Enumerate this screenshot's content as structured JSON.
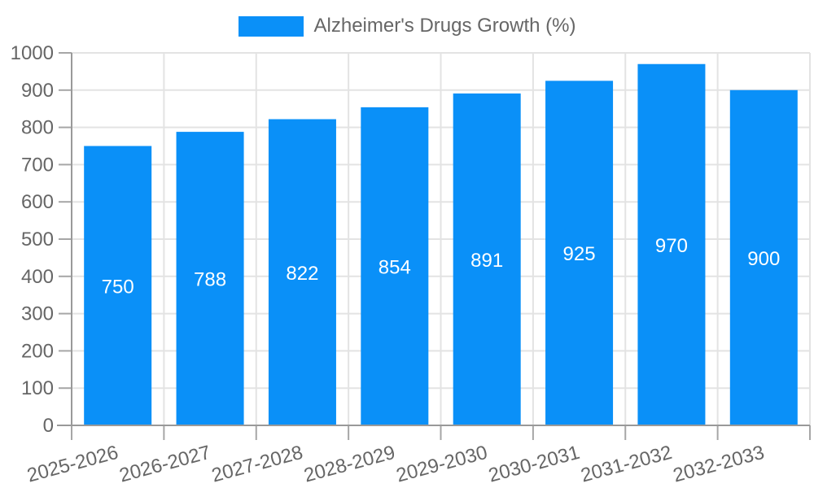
{
  "legend": {
    "label": "Alzheimer's Drugs Growth (%)"
  },
  "chart_data": {
    "type": "bar",
    "title": "",
    "categories": [
      "2025-2026",
      "2026-2027",
      "2027-2028",
      "2028-2029",
      "2029-2030",
      "2030-2031",
      "2031-2032",
      "2032-2033"
    ],
    "values": [
      750,
      788,
      822,
      854,
      891,
      925,
      970,
      900
    ],
    "series_name": "Alzheimer's Drugs Growth (%)",
    "xlabel": "",
    "ylabel": "",
    "ylim": [
      0,
      1000
    ],
    "ytick_step": 100,
    "grid": true,
    "legend_position": "top",
    "x_label_rotation_deg": -15,
    "colors": {
      "bar": "#0a90f8",
      "value_label": "#ffffff",
      "text": "#666666",
      "grid": "#e3e3e3",
      "axis": "#999999",
      "tick": "#a6a6a6"
    }
  }
}
